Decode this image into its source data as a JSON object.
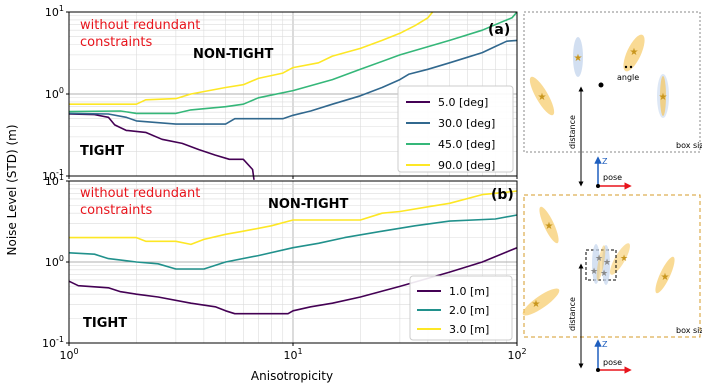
{
  "figure": {
    "x_axis_label": "Anisotropicity",
    "y_axis_label": "Noise Level (STD) (m)"
  },
  "chart_data": [
    {
      "type": "line",
      "panel_label": "(a)",
      "xlabel": "",
      "ylabel": "Noise Level (STD) (m)",
      "xscale": "log",
      "yscale": "log",
      "xlim": [
        1,
        100
      ],
      "ylim": [
        0.1,
        10
      ],
      "x_ticks": [
        "10^0",
        "10^1",
        "10^2"
      ],
      "y_ticks": [
        "10^-1",
        "10^0",
        "10^1"
      ],
      "grid": true,
      "legend_position": "right",
      "annotations": {
        "red_note_line1": "without redundant",
        "red_note_line2": "constraints",
        "upper_region": "NON-TIGHT",
        "lower_region": "TIGHT"
      },
      "series": [
        {
          "name": "5.0 [deg]",
          "color": "#440154",
          "points": [
            [
              1,
              0.57
            ],
            [
              1.3,
              0.56
            ],
            [
              1.5,
              0.52
            ],
            [
              1.6,
              0.42
            ],
            [
              1.8,
              0.36
            ],
            [
              2.2,
              0.34
            ],
            [
              2.6,
              0.28
            ],
            [
              3.2,
              0.25
            ],
            [
              3.8,
              0.21
            ],
            [
              4.5,
              0.18
            ],
            [
              5.2,
              0.16
            ],
            [
              6.0,
              0.16
            ],
            [
              6.6,
              0.12
            ],
            [
              6.7,
              0.09
            ]
          ]
        },
        {
          "name": "30.0 [deg]",
          "color": "#31688e",
          "points": [
            [
              1,
              0.58
            ],
            [
              1.5,
              0.57
            ],
            [
              1.8,
              0.52
            ],
            [
              2.0,
              0.47
            ],
            [
              3.0,
              0.43
            ],
            [
              5.0,
              0.43
            ],
            [
              5.5,
              0.5
            ],
            [
              9,
              0.5
            ],
            [
              10,
              0.55
            ],
            [
              12,
              0.62
            ],
            [
              15,
              0.75
            ],
            [
              20,
              0.95
            ],
            [
              25,
              1.2
            ],
            [
              30,
              1.5
            ],
            [
              33,
              1.75
            ],
            [
              40,
              2.0
            ],
            [
              50,
              2.4
            ],
            [
              60,
              2.8
            ],
            [
              70,
              3.2
            ],
            [
              80,
              3.8
            ],
            [
              90,
              4.4
            ],
            [
              100,
              4.5
            ]
          ]
        },
        {
          "name": "45.0 [deg]",
          "color": "#35b779",
          "points": [
            [
              1,
              0.61
            ],
            [
              1.7,
              0.62
            ],
            [
              2.0,
              0.58
            ],
            [
              3.0,
              0.58
            ],
            [
              3.5,
              0.64
            ],
            [
              5,
              0.7
            ],
            [
              6,
              0.75
            ],
            [
              7,
              0.9
            ],
            [
              10,
              1.1
            ],
            [
              15,
              1.5
            ],
            [
              20,
              2.0
            ],
            [
              30,
              3.0
            ],
            [
              50,
              4.5
            ],
            [
              70,
              6.0
            ],
            [
              85,
              7.5
            ],
            [
              95,
              8.5
            ],
            [
              100,
              10
            ]
          ]
        },
        {
          "name": "90.0 [deg]",
          "color": "#fde725",
          "points": [
            [
              1,
              0.75
            ],
            [
              2,
              0.75
            ],
            [
              2.2,
              0.85
            ],
            [
              3,
              0.88
            ],
            [
              3.5,
              1.0
            ],
            [
              5,
              1.2
            ],
            [
              6,
              1.3
            ],
            [
              7,
              1.55
            ],
            [
              9,
              1.8
            ],
            [
              10,
              2.1
            ],
            [
              13,
              2.4
            ],
            [
              15,
              2.9
            ],
            [
              20,
              3.6
            ],
            [
              25,
              4.5
            ],
            [
              30,
              5.5
            ],
            [
              35,
              6.8
            ],
            [
              40,
              8.5
            ],
            [
              42,
              10
            ]
          ]
        }
      ]
    },
    {
      "type": "line",
      "panel_label": "(b)",
      "xlabel": "Anisotropicity",
      "ylabel": "Noise Level (STD) (m)",
      "xscale": "log",
      "yscale": "log",
      "xlim": [
        1,
        100
      ],
      "ylim": [
        0.1,
        10
      ],
      "x_ticks": [
        "10^0",
        "10^1",
        "10^2"
      ],
      "y_ticks": [
        "10^-1",
        "10^0",
        "10^1"
      ],
      "grid": true,
      "legend_position": "right",
      "annotations": {
        "red_note_line1": "without redundant",
        "red_note_line2": "constraints",
        "upper_region": "NON-TIGHT",
        "lower_region": "TIGHT"
      },
      "series": [
        {
          "name": "1.0 [m]",
          "color": "#440154",
          "points": [
            [
              1,
              0.58
            ],
            [
              1.1,
              0.51
            ],
            [
              1.5,
              0.48
            ],
            [
              1.7,
              0.43
            ],
            [
              2.0,
              0.4
            ],
            [
              2.5,
              0.37
            ],
            [
              3.5,
              0.31
            ],
            [
              4.5,
              0.28
            ],
            [
              5.0,
              0.25
            ],
            [
              5.5,
              0.23
            ],
            [
              9.5,
              0.23
            ],
            [
              10,
              0.25
            ],
            [
              12,
              0.28
            ],
            [
              15,
              0.31
            ],
            [
              20,
              0.37
            ],
            [
              30,
              0.5
            ],
            [
              50,
              0.75
            ],
            [
              70,
              1.0
            ],
            [
              100,
              1.5
            ]
          ]
        },
        {
          "name": "2.0 [m]",
          "color": "#21918c",
          "points": [
            [
              1,
              1.3
            ],
            [
              1.3,
              1.25
            ],
            [
              1.5,
              1.1
            ],
            [
              2.0,
              1.0
            ],
            [
              2.5,
              0.95
            ],
            [
              3.0,
              0.82
            ],
            [
              4.0,
              0.82
            ],
            [
              5,
              1.0
            ],
            [
              7,
              1.2
            ],
            [
              10,
              1.5
            ],
            [
              13,
              1.7
            ],
            [
              17,
              2.0
            ],
            [
              25,
              2.4
            ],
            [
              35,
              2.8
            ],
            [
              50,
              3.2
            ],
            [
              80,
              3.4
            ],
            [
              100,
              3.8
            ]
          ]
        },
        {
          "name": "3.0 [m]",
          "color": "#fde725",
          "points": [
            [
              1,
              2.0
            ],
            [
              2,
              2.0
            ],
            [
              2.2,
              1.8
            ],
            [
              3,
              1.8
            ],
            [
              3.5,
              1.65
            ],
            [
              4,
              1.9
            ],
            [
              5,
              2.2
            ],
            [
              6,
              2.4
            ],
            [
              8,
              2.8
            ],
            [
              10,
              3.3
            ],
            [
              20,
              3.3
            ],
            [
              25,
              4.0
            ],
            [
              30,
              4.2
            ],
            [
              40,
              4.8
            ],
            [
              50,
              5.3
            ],
            [
              70,
              6.8
            ],
            [
              100,
              7.5
            ]
          ]
        }
      ]
    }
  ],
  "schematics": {
    "a": {
      "label_angle": "angle",
      "label_distance": "distance",
      "label_box": "box size",
      "label_pose": "pose",
      "label_z": "Z"
    },
    "b": {
      "label_distance": "distance",
      "label_box": "box size",
      "label_pose": "pose",
      "label_z": "Z"
    }
  }
}
